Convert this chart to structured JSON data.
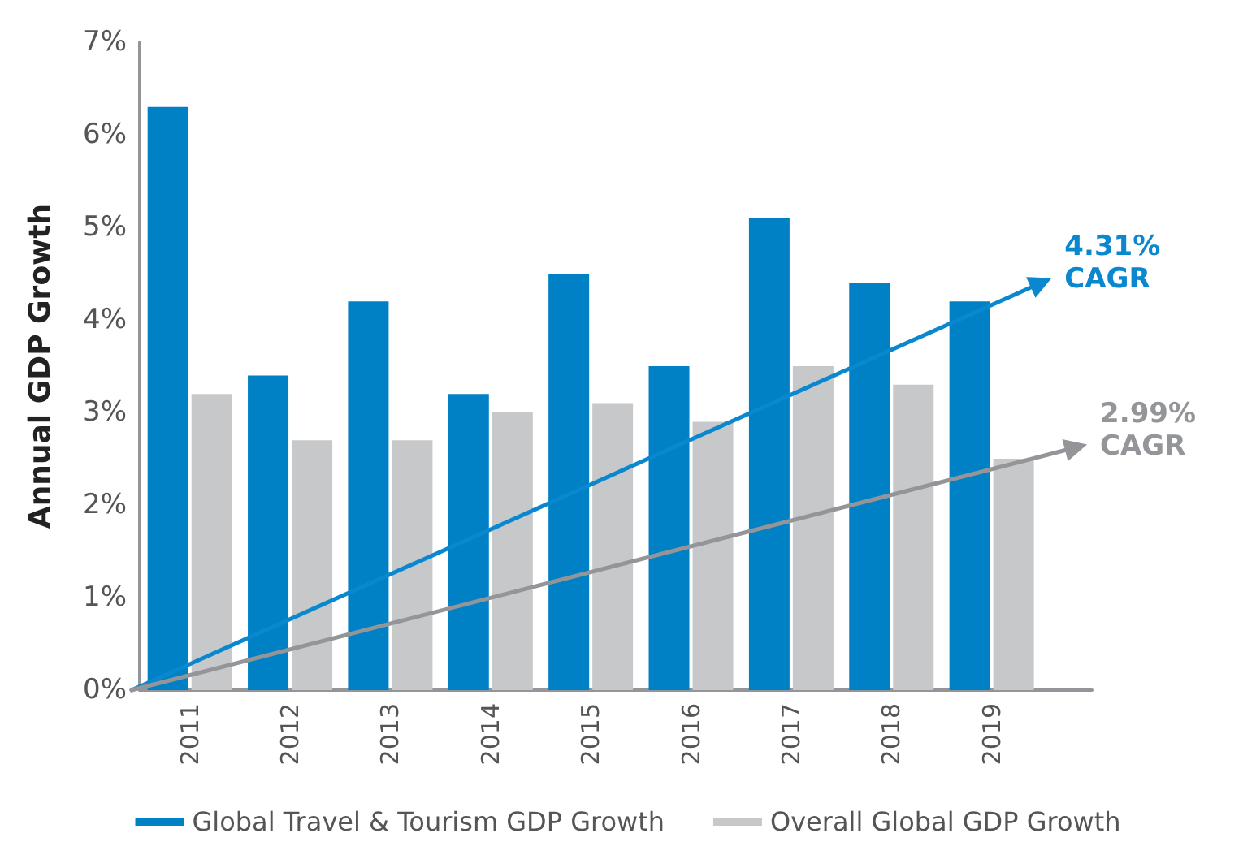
{
  "chart_data": {
    "type": "bar",
    "ylabel": "Annual GDP Growth",
    "x": [
      2011,
      2012,
      2013,
      2014,
      2015,
      2016,
      2017,
      2018,
      2019
    ],
    "xlim": [
      2010.5,
      2020
    ],
    "xticks": [
      2011,
      2012,
      2013,
      2014,
      2015,
      2016,
      2017,
      2018,
      2019
    ],
    "ylim": [
      0,
      7
    ],
    "yticks": [
      {
        "value": 0,
        "label": "0%"
      },
      {
        "value": 1,
        "label": "1%"
      },
      {
        "value": 2,
        "label": "2%"
      },
      {
        "value": 3,
        "label": "3%"
      },
      {
        "value": 4,
        "label": "4%"
      },
      {
        "value": 5,
        "label": "5%"
      },
      {
        "value": 6,
        "label": "6%"
      },
      {
        "value": 7,
        "label": "7%"
      }
    ],
    "series": [
      {
        "name": "Global Travel & Tourism GDP Growth",
        "color": "#0081c6",
        "values": [
          6.3,
          3.4,
          4.2,
          3.2,
          4.5,
          3.5,
          5.1,
          4.4,
          4.2
        ]
      },
      {
        "name": "Overall Global GDP Growth",
        "color": "#c7c8ca",
        "values": [
          3.2,
          2.7,
          2.7,
          3.0,
          3.1,
          2.9,
          3.5,
          3.3,
          2.5
        ]
      }
    ],
    "annotations": [
      "4.31% CAGR",
      "2.99% CAGR"
    ],
    "grid": false,
    "legend": "bottom"
  }
}
